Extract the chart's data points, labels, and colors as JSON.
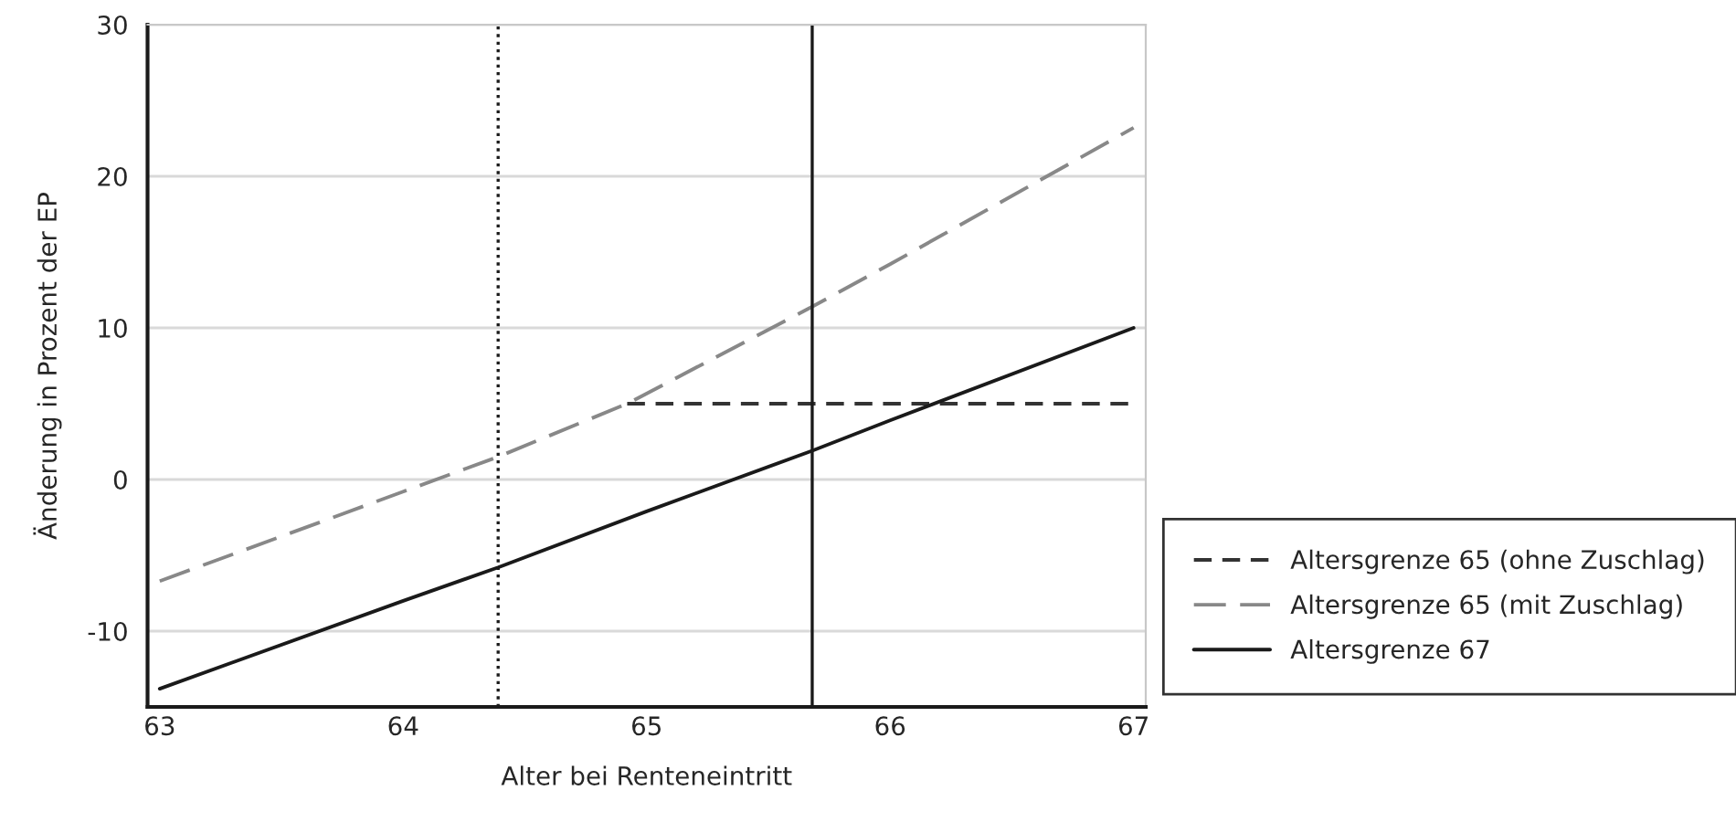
{
  "chart_data": {
    "type": "line",
    "xlabel": "Alter bei Renteneintritt",
    "ylabel": "Änderung in Prozent der EP",
    "xlim": [
      62.95,
      67.05
    ],
    "xticks": [
      63,
      64,
      65,
      66,
      67
    ],
    "ylim": [
      -15,
      30
    ],
    "yticks": [
      -10,
      0,
      10,
      20,
      30
    ],
    "grid": "y",
    "legend": "bottom right",
    "marker": "none",
    "series": [
      {
        "name": "Altersgrenze 65 (ohne Zuschlag)",
        "color": "#333333",
        "line_style": "dashed",
        "x": [
          64.92,
          67
        ],
        "values": [
          5,
          5
        ]
      },
      {
        "name": "Altersgrenze 65 (mit Zuschlag)",
        "color": "#888888",
        "line_style": "longdash",
        "x": [
          63,
          64,
          64.39,
          64.92,
          65.68,
          66,
          67
        ],
        "values": [
          -6.7,
          -0.8,
          1.5,
          5.0,
          11.4,
          14.2,
          23.2
        ]
      },
      {
        "name": "Altersgrenze 67",
        "color": "#1a1a1a",
        "line_style": "solid",
        "x": [
          63,
          64,
          64.39,
          65,
          65.68,
          66,
          67
        ],
        "values": [
          -13.8,
          -8.0,
          -5.8,
          -2.1,
          1.9,
          3.9,
          10
        ]
      }
    ],
    "ref_lines": [
      {
        "axis": "x",
        "value": 64.39,
        "color": "#1a1a1a",
        "line_style": "dotted"
      },
      {
        "axis": "x",
        "value": 65.68,
        "color": "#1a1a1a",
        "line_style": "solid"
      }
    ]
  }
}
